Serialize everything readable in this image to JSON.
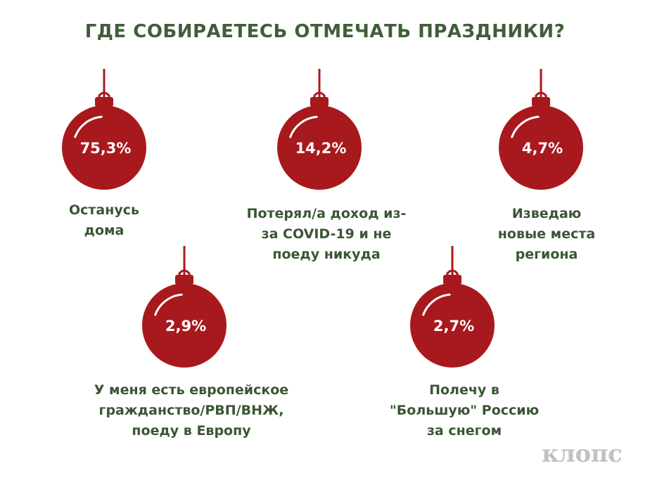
{
  "title": "ГДЕ СОБИРАЕТЕСЬ ОТМЕЧАТЬ ПРАЗДНИКИ?",
  "brand": "клопс",
  "colors": {
    "ornament": "#a8191d",
    "text": "#3a5634",
    "title": "#3f5e39"
  },
  "chart_data": {
    "type": "table",
    "title": "ГДЕ СОБИРАЕТЕСЬ ОТМЕЧАТЬ ПРАЗДНИКИ?",
    "categories": [
      [
        "Останусь",
        "дома"
      ],
      [
        "Потерял/а доход из-",
        "за COVID-19 и не",
        "поеду никуда"
      ],
      [
        "Изведаю",
        "новые места",
        "региона"
      ],
      [
        "У меня есть европейское",
        "гражданство/РВП/ВНЖ,",
        "поеду в Европу"
      ],
      [
        "Полечу в",
        "\"Большую\" Россию",
        "за снегом"
      ]
    ],
    "values": [
      75.3,
      14.2,
      4.7,
      2.9,
      2.7
    ],
    "value_labels": [
      "75,3%",
      "14,2%",
      "4,7%",
      "2,9%",
      "2,7%"
    ]
  }
}
